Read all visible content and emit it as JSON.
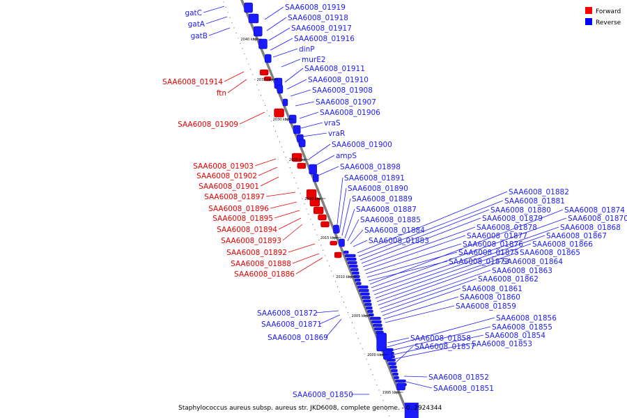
{
  "caption": "Staphylococcus aureus subsp. aureus str. JKD6008, complete genome. - 0..2924344",
  "legend": [
    {
      "label": "Forward",
      "color": "#ff0000"
    },
    {
      "label": "Reverse",
      "color": "#0000ff"
    }
  ],
  "colors": {
    "forward": "#e60000",
    "reverse": "#1a1aff",
    "backbone": "#808080"
  },
  "ticks": [
    "2040 kbp",
    "2035 kbp",
    "2030 kbp",
    "2025 kbp",
    "2020 kbp",
    "2015 kbp",
    "2010 kbp",
    "2005 kbp",
    "2000 kbp",
    "1995 kbp"
  ],
  "labels": [
    "gatC",
    "gatA",
    "gatB",
    "SAA6008_01919",
    "SAA6008_01918",
    "SAA6008_01917",
    "SAA6008_01916",
    "dinP",
    "murE2",
    "SAA6008_01911",
    "SAA6008_01910",
    "SAA6008_01908",
    "SAA6008_01907",
    "SAA6008_01906",
    "vraS",
    "vraR",
    "SAA6008_01900",
    "ampS",
    "SAA6008_01898",
    "SAA6008_01891",
    "SAA6008_01890",
    "SAA6008_01889",
    "SAA6008_01887",
    "SAA6008_01885",
    "SAA6008_01884",
    "SAA6008_01883",
    "SAA6008_01914",
    "ftn",
    "SAA6008_01909",
    "SAA6008_01903",
    "SAA6008_01902",
    "SAA6008_01901",
    "SAA6008_01897",
    "SAA6008_01896",
    "SAA6008_01895",
    "SAA6008_01894",
    "SAA6008_01893",
    "SAA6008_01892",
    "SAA6008_01888",
    "SAA6008_01886",
    "SAA6008_01882",
    "SAA6008_01881",
    "SAA6008_01880",
    "SAA6008_01879",
    "SAA6008_01878",
    "SAA6008_01877",
    "SAA6008_01876",
    "SAA6008_01875",
    "SAA6008_01873",
    "SAA6008_01874",
    "SAA6008_01870",
    "SAA6008_01868",
    "SAA6008_01867",
    "SAA6008_01866",
    "SAA6008_01865",
    "SAA6008_01864",
    "SAA6008_01863",
    "SAA6008_01862",
    "SAA6008_01861",
    "SAA6008_01860",
    "SAA6008_01859",
    "SAA6008_01856",
    "SAA6008_01855",
    "SAA6008_01854",
    "SAA6008_01853",
    "SAA6008_01858",
    "SAA6008_01857",
    "SAA6008_01852",
    "SAA6008_01851",
    "SAA6008_01872",
    "SAA6008_01871",
    "SAA6008_01869",
    "SAA6008_01850"
  ]
}
